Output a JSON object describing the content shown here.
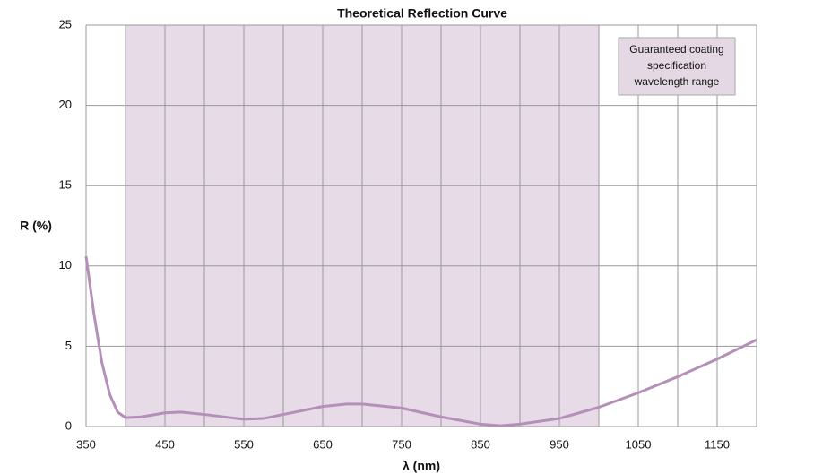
{
  "chart_data": {
    "type": "line",
    "title": "Theoretical Reflection Curve",
    "xlabel": "λ (nm)",
    "ylabel": "R (%)",
    "x": [
      350,
      360,
      370,
      380,
      390,
      400,
      420,
      450,
      470,
      500,
      550,
      575,
      600,
      650,
      680,
      700,
      750,
      800,
      850,
      875,
      900,
      950,
      1000,
      1050,
      1100,
      1150,
      1200
    ],
    "series": [
      {
        "name": "R",
        "color": "#b48fb8",
        "values": [
          10.6,
          7,
          4,
          2,
          0.9,
          0.55,
          0.6,
          0.85,
          0.9,
          0.75,
          0.45,
          0.5,
          0.75,
          1.25,
          1.4,
          1.4,
          1.15,
          0.6,
          0.15,
          0.05,
          0.15,
          0.5,
          1.2,
          2.1,
          3.1,
          4.2,
          5.4
        ]
      }
    ],
    "xlim": [
      350,
      1200
    ],
    "xticks": [
      350,
      450,
      550,
      650,
      750,
      850,
      950,
      1050,
      1150
    ],
    "x_minor_ticks": [
      400,
      500,
      600,
      700,
      800,
      900,
      1000,
      1100
    ],
    "ylim": [
      0,
      25
    ],
    "yticks": [
      0,
      5,
      10,
      15,
      20,
      25
    ],
    "grid": true,
    "shaded_range": [
      400,
      1000
    ],
    "shaded_color": "#e6dbe6",
    "annotation": [
      "Guaranteed coating",
      "specification",
      "wavelength range"
    ]
  }
}
